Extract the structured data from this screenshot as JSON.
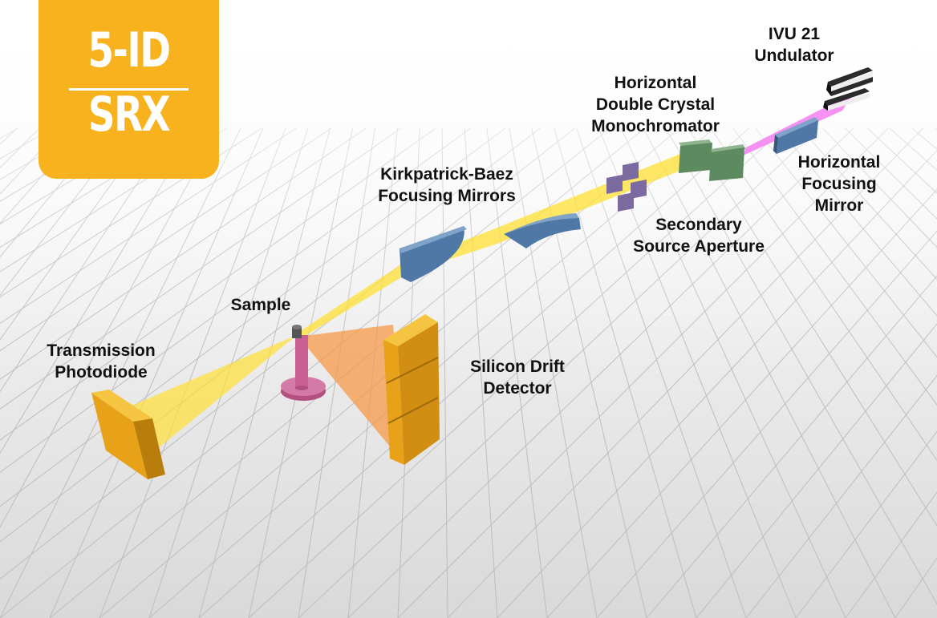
{
  "badge": {
    "line1": "5-ID",
    "line2": "SRX"
  },
  "components": {
    "undulator": "IVU 21\nUndulator",
    "monochromator": "Horizontal\nDouble Crystal\nMonochromator",
    "focusing_mirror": "Horizontal\nFocusing\nMirror",
    "aperture": "Secondary\nSource Aperture",
    "kb_mirrors": "Kirkpatrick-Baez\nFocusing Mirrors",
    "sample": "Sample",
    "photodiode": "Transmission\nPhotodiode",
    "detector": "Silicon Drift\nDetector"
  },
  "colors": {
    "badge": "#f7b21d",
    "xray_beam": "#ffe033",
    "undulator_beam": "#f27ef0",
    "fluorescence": "#f79a4a",
    "mirror": "#4f78a6",
    "crystal": "#5d8a5e",
    "aperture": "#7b6aa0",
    "sample_stage": "#c95f93",
    "detector": "#e8a21a"
  }
}
